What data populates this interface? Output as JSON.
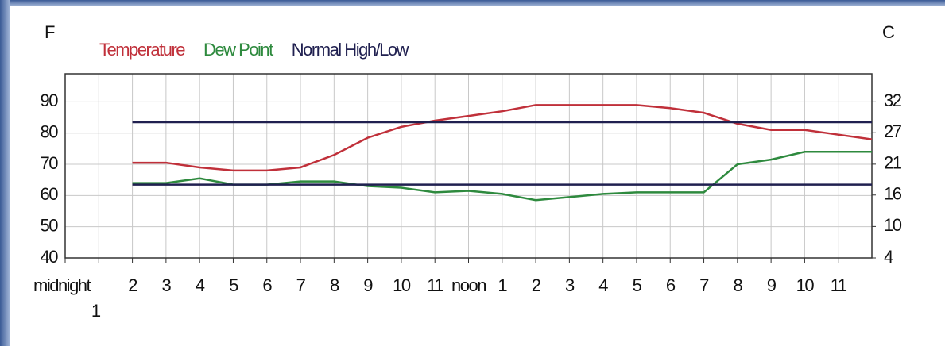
{
  "chart_data": {
    "type": "line",
    "y_label": "F",
    "y2_label": "C",
    "x": [
      2,
      3,
      4,
      5,
      6,
      7,
      8,
      9,
      10,
      11,
      12,
      13,
      14,
      15,
      16,
      17,
      18,
      19,
      20,
      21,
      22,
      23,
      24
    ],
    "xlim": [
      0,
      24
    ],
    "xticks": [
      {
        "value": 0,
        "label": "midnight"
      },
      1,
      2,
      3,
      4,
      5,
      6,
      7,
      8,
      9,
      10,
      11,
      {
        "value": 12,
        "label": "noon"
      },
      {
        "value": 13,
        "label": "1"
      },
      {
        "value": 14,
        "label": "2"
      },
      {
        "value": 15,
        "label": "3"
      },
      {
        "value": 16,
        "label": "4"
      },
      {
        "value": 17,
        "label": "5"
      },
      {
        "value": 18,
        "label": "6"
      },
      {
        "value": 19,
        "label": "7"
      },
      {
        "value": 20,
        "label": "8"
      },
      {
        "value": 21,
        "label": "9"
      },
      {
        "value": 22,
        "label": "10"
      },
      {
        "value": 23,
        "label": "11"
      }
    ],
    "ylim": [
      40,
      99
    ],
    "yticks": [
      40,
      50,
      60,
      70,
      80,
      90
    ],
    "y2lim": [
      4.4,
      37.2
    ],
    "y2ticks": [
      {
        "value": 4.4,
        "label": "4"
      },
      {
        "value": 10,
        "label": "10"
      },
      {
        "value": 15.6,
        "label": "16"
      },
      {
        "value": 21.1,
        "label": "21"
      },
      {
        "value": 26.7,
        "label": "27"
      },
      {
        "value": 32.2,
        "label": "32"
      }
    ],
    "grid": true,
    "series": [
      {
        "name": "Temperature",
        "color": "#c0303a",
        "values": [
          70.5,
          70.5,
          69,
          68,
          68,
          69,
          73,
          78.5,
          82,
          84,
          85.5,
          87,
          89,
          89,
          89,
          89,
          88,
          86.5,
          83,
          81,
          81,
          79.5,
          78
        ]
      },
      {
        "name": "Dew Point",
        "color": "#2e8a3e",
        "values": [
          64,
          64,
          65.5,
          63.5,
          63.5,
          64.5,
          64.5,
          63,
          62.5,
          61,
          61.5,
          60.5,
          58.5,
          59.5,
          60.5,
          61,
          61,
          61,
          70,
          71.5,
          74,
          74,
          74
        ]
      },
      {
        "name": "Normal High/Low",
        "color": "#202050",
        "values": [
          83.5,
          83.5,
          83.5,
          83.5,
          83.5,
          83.5,
          83.5,
          83.5,
          83.5,
          83.5,
          83.5,
          83.5,
          83.5,
          83.5,
          83.5,
          83.5,
          83.5,
          83.5,
          83.5,
          83.5,
          83.5,
          83.5,
          83.5
        ],
        "low_values": [
          63.5,
          63.5,
          63.5,
          63.5,
          63.5,
          63.5,
          63.5,
          63.5,
          63.5,
          63.5,
          63.5,
          63.5,
          63.5,
          63.5,
          63.5,
          63.5,
          63.5,
          63.5,
          63.5,
          63.5,
          63.5,
          63.5,
          63.5
        ]
      }
    ]
  }
}
